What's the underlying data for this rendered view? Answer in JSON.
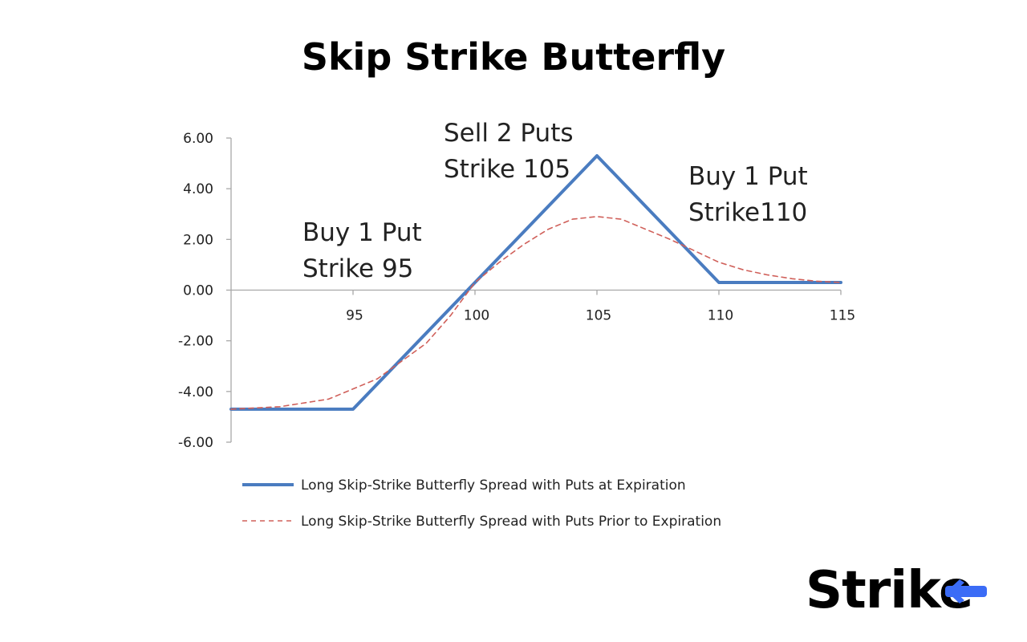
{
  "title": "Skip Strike Butterfly",
  "brand": {
    "name": "Strike",
    "accent": "#3b6cf6"
  },
  "chart_data": {
    "type": "line",
    "title": "Skip Strike Butterfly",
    "xlabel": "",
    "ylabel": "",
    "xlim": [
      90,
      115
    ],
    "ylim": [
      -6,
      6
    ],
    "x_ticks": [
      "95",
      "100",
      "105",
      "110",
      "115"
    ],
    "y_ticks": [
      "6.00",
      "4.00",
      "2.00",
      "0.00",
      "-2.00",
      "-4.00",
      "-6.00"
    ],
    "grid": false,
    "legend_position": "bottom",
    "series": [
      {
        "name": "Long Skip-Strike Butterfly Spread with Puts at Expiration",
        "style": "solid",
        "color": "#4a7cc0",
        "x": [
          90,
          95,
          105,
          110,
          115
        ],
        "y": [
          -4.7,
          -4.7,
          5.3,
          0.3,
          0.3
        ]
      },
      {
        "name": "Long Skip-Strike Butterfly Spread with Puts Prior to Expiration",
        "style": "dashed",
        "color": "#d0605a",
        "x": [
          90,
          92,
          94,
          96,
          98,
          99,
          100,
          101,
          102,
          103,
          104,
          105,
          106,
          107,
          108,
          109,
          110,
          111,
          112,
          113,
          114,
          115
        ],
        "y": [
          -4.7,
          -4.6,
          -4.3,
          -3.5,
          -2.1,
          -1.0,
          0.3,
          1.1,
          1.8,
          2.4,
          2.8,
          2.9,
          2.8,
          2.4,
          2.0,
          1.55,
          1.1,
          0.8,
          0.6,
          0.45,
          0.35,
          0.3
        ]
      }
    ],
    "annotations": [
      {
        "lines": [
          "Buy 1 Put",
          "Strike 95"
        ]
      },
      {
        "lines": [
          "Sell 2 Puts",
          "Strike 105"
        ]
      },
      {
        "lines": [
          "Buy 1 Put",
          "Strike110"
        ]
      }
    ]
  }
}
